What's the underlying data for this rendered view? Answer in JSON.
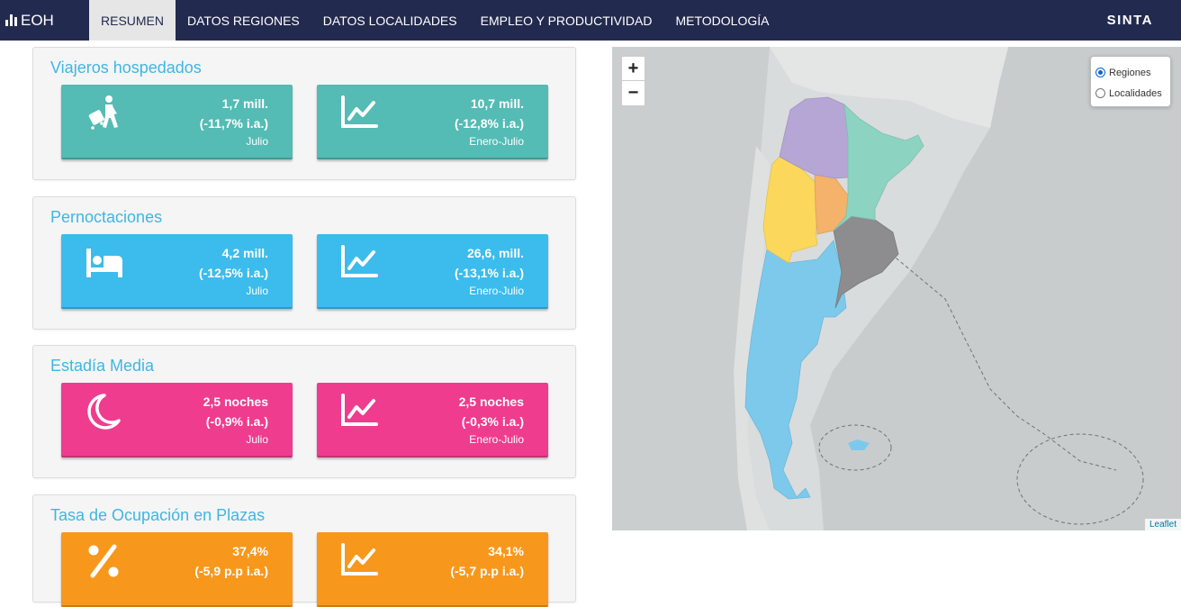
{
  "nav": {
    "brand": "EOH",
    "tabs": [
      {
        "label": "RESUMEN",
        "active": true
      },
      {
        "label": "DATOS REGIONES"
      },
      {
        "label": "DATOS LOCALIDADES"
      },
      {
        "label": "EMPLEO Y PRODUCTIVIDAD"
      },
      {
        "label": "METODOLOGÍA"
      }
    ],
    "right_brand": "SINTA"
  },
  "panels": [
    {
      "title": "Viajeros hospedados",
      "color": "#54bbb5",
      "cards": [
        {
          "icon": "traveler-luggage-icon",
          "value": "1,7 mill.",
          "delta": "(-11,7% i.a.)",
          "period": "Julio"
        },
        {
          "icon": "line-chart-icon",
          "value": "10,7 mill.",
          "delta": "(-12,8% i.a.)",
          "period": "Enero-Julio"
        }
      ]
    },
    {
      "title": "Pernoctaciones",
      "color": "#3bbcec",
      "cards": [
        {
          "icon": "bed-icon",
          "value": "4,2 mill.",
          "delta": "(-12,5% i.a.)",
          "period": "Julio"
        },
        {
          "icon": "line-chart-icon",
          "value": "26,6, mill.",
          "delta": "(-13,1% i.a.)",
          "period": "Enero-Julio"
        }
      ]
    },
    {
      "title": "Estadía Media",
      "color": "#ef3c8f",
      "cards": [
        {
          "icon": "moon-icon",
          "value": "2,5 noches",
          "delta": "(-0,9% i.a.)",
          "period": "Julio"
        },
        {
          "icon": "line-chart-icon",
          "value": "2,5 noches",
          "delta": "(-0,3% i.a.)",
          "period": "Enero-Julio"
        }
      ]
    },
    {
      "title": "Tasa de Ocupación en Plazas",
      "color": "#f7981d",
      "cards": [
        {
          "icon": "percent-icon",
          "value": "37,4%",
          "delta": "(-5,9 p.p i.a.)",
          "period": ""
        },
        {
          "icon": "line-chart-icon",
          "value": "34,1%",
          "delta": "(-5,7 p.p i.a.)",
          "period": ""
        }
      ]
    }
  ],
  "map": {
    "zoom_in": "+",
    "zoom_out": "−",
    "layers": [
      {
        "label": "Regiones",
        "checked": true
      },
      {
        "label": "Localidades",
        "checked": false
      }
    ],
    "attribution": "Leaflet",
    "region_colors": {
      "norte": "#b5a6d6",
      "litoral": "#8dd3c2",
      "cuyo": "#fbd75b",
      "cordoba": "#f4b26a",
      "buenos_aires": "#8d8d8f",
      "patagonia": "#7cc9ec"
    }
  }
}
